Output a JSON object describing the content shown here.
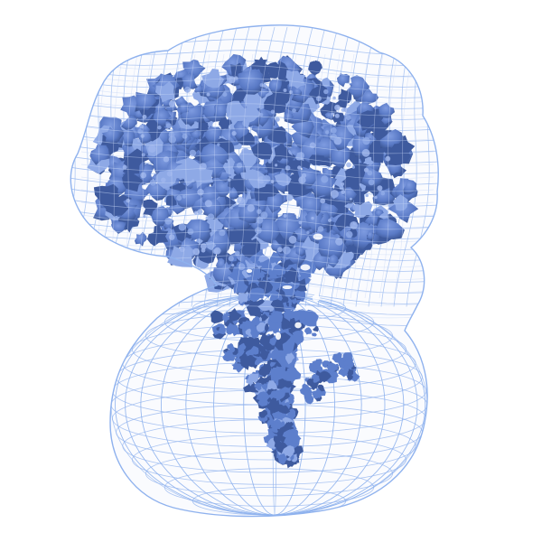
{
  "scene": {
    "background": "#ffffff",
    "mesh_color": "#8fb2ee",
    "mesh_color_dark": "#6f96dc",
    "density_color": "#5d7fcc",
    "density_dark": "#3e5a9e",
    "density_light": "#8ea9e6",
    "mesh_outline": "closed-wireframe-envelope",
    "density_map": "isosurface-blob"
  }
}
